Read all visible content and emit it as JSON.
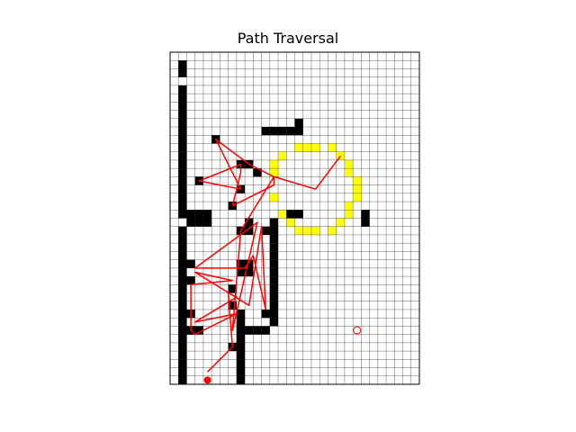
{
  "chart_data": {
    "type": "grid-path",
    "title": "Path Traversal",
    "grid": {
      "cols": 30,
      "rows": 40
    },
    "colors": {
      "obstacle": "#000000",
      "circle": "#ffff00",
      "path": "#ff0000",
      "gridline": "#000000"
    },
    "obstacles": [
      [
        1,
        1
      ],
      [
        1,
        2
      ],
      [
        1,
        4
      ],
      [
        1,
        5
      ],
      [
        1,
        6
      ],
      [
        1,
        7
      ],
      [
        1,
        8
      ],
      [
        1,
        9
      ],
      [
        1,
        10
      ],
      [
        1,
        11
      ],
      [
        1,
        12
      ],
      [
        1,
        13
      ],
      [
        1,
        14
      ],
      [
        1,
        15
      ],
      [
        1,
        16
      ],
      [
        1,
        17
      ],
      [
        1,
        18
      ],
      [
        1,
        19
      ],
      [
        2,
        19
      ],
      [
        3,
        19
      ],
      [
        4,
        19
      ],
      [
        2,
        20
      ],
      [
        3,
        20
      ],
      [
        4,
        20
      ],
      [
        1,
        21
      ],
      [
        1,
        22
      ],
      [
        1,
        23
      ],
      [
        1,
        24
      ],
      [
        1,
        25
      ],
      [
        1,
        26
      ],
      [
        1,
        27
      ],
      [
        1,
        28
      ],
      [
        1,
        29
      ],
      [
        1,
        30
      ],
      [
        1,
        31
      ],
      [
        1,
        32
      ],
      [
        1,
        33
      ],
      [
        1,
        34
      ],
      [
        1,
        35
      ],
      [
        1,
        36
      ],
      [
        1,
        37
      ],
      [
        1,
        38
      ],
      [
        1,
        39
      ],
      [
        2,
        25
      ],
      [
        2,
        27
      ],
      [
        2,
        31
      ],
      [
        2,
        33
      ],
      [
        5,
        10
      ],
      [
        3,
        15
      ],
      [
        8,
        13
      ],
      [
        9,
        13
      ],
      [
        8,
        16
      ],
      [
        7,
        18
      ],
      [
        12,
        20
      ],
      [
        12,
        21
      ],
      [
        12,
        22
      ],
      [
        12,
        23
      ],
      [
        12,
        24
      ],
      [
        12,
        25
      ],
      [
        12,
        26
      ],
      [
        12,
        27
      ],
      [
        12,
        28
      ],
      [
        12,
        29
      ],
      [
        12,
        30
      ],
      [
        12,
        31
      ],
      [
        12,
        32
      ],
      [
        11,
        21
      ],
      [
        11,
        31
      ],
      [
        10,
        14
      ],
      [
        9,
        20
      ],
      [
        8,
        21
      ],
      [
        9,
        21
      ],
      [
        8,
        25
      ],
      [
        9,
        25
      ],
      [
        8,
        26
      ],
      [
        9,
        26
      ],
      [
        7,
        28
      ],
      [
        7,
        30
      ],
      [
        8,
        31
      ],
      [
        8,
        32
      ],
      [
        8,
        33
      ],
      [
        8,
        34
      ],
      [
        8,
        35
      ],
      [
        8,
        36
      ],
      [
        8,
        37
      ],
      [
        8,
        38
      ],
      [
        8,
        39
      ],
      [
        9,
        33
      ],
      [
        10,
        33
      ],
      [
        11,
        33
      ],
      [
        7,
        35
      ],
      [
        3,
        33
      ],
      [
        2,
        33
      ],
      [
        11,
        9
      ],
      [
        12,
        9
      ],
      [
        13,
        9
      ],
      [
        14,
        9
      ],
      [
        15,
        9
      ],
      [
        15,
        8
      ],
      [
        14,
        19
      ],
      [
        15,
        19
      ],
      [
        23,
        19
      ],
      [
        23,
        20
      ]
    ],
    "circle": [
      [
        15,
        11
      ],
      [
        16,
        11
      ],
      [
        17,
        11
      ],
      [
        19,
        11
      ],
      [
        13,
        12
      ],
      [
        20,
        12
      ],
      [
        12,
        13
      ],
      [
        21,
        13
      ],
      [
        12,
        14
      ],
      [
        21,
        14
      ],
      [
        22,
        15
      ],
      [
        22,
        16
      ],
      [
        12,
        17
      ],
      [
        22,
        17
      ],
      [
        21,
        18
      ],
      [
        13,
        19
      ],
      [
        21,
        19
      ],
      [
        14,
        20
      ],
      [
        20,
        20
      ],
      [
        15,
        21
      ],
      [
        16,
        21
      ],
      [
        17,
        21
      ],
      [
        19,
        21
      ]
    ],
    "path": [
      [
        4.5,
        38.5
      ],
      [
        7.5,
        35.5
      ],
      [
        7,
        29
      ],
      [
        8,
        29.5
      ],
      [
        3,
        32.5
      ],
      [
        8,
        31.5
      ],
      [
        3,
        34
      ],
      [
        2.5,
        33.5
      ],
      [
        2.5,
        28
      ],
      [
        7.5,
        27.5
      ],
      [
        3,
        26.5
      ],
      [
        9.5,
        30.5
      ],
      [
        11,
        21
      ],
      [
        11.5,
        31
      ],
      [
        10,
        24.5
      ],
      [
        9,
        26
      ],
      [
        3,
        26
      ],
      [
        10.5,
        20.5
      ],
      [
        7.5,
        33.5
      ],
      [
        8.5,
        21.5
      ],
      [
        12.5,
        15
      ],
      [
        12.5,
        16
      ],
      [
        7.5,
        18.5
      ],
      [
        8.5,
        14.5
      ],
      [
        8.5,
        13.5
      ],
      [
        3.5,
        15.5
      ],
      [
        8.5,
        16.5
      ],
      [
        5.5,
        10.5
      ],
      [
        9.5,
        13.5
      ],
      [
        12.5,
        15
      ],
      [
        17.5,
        16.5
      ],
      [
        20.5,
        12.5
      ]
    ],
    "goal": [
      22.5,
      33.5
    ],
    "start": [
      4.5,
      39.5
    ]
  }
}
